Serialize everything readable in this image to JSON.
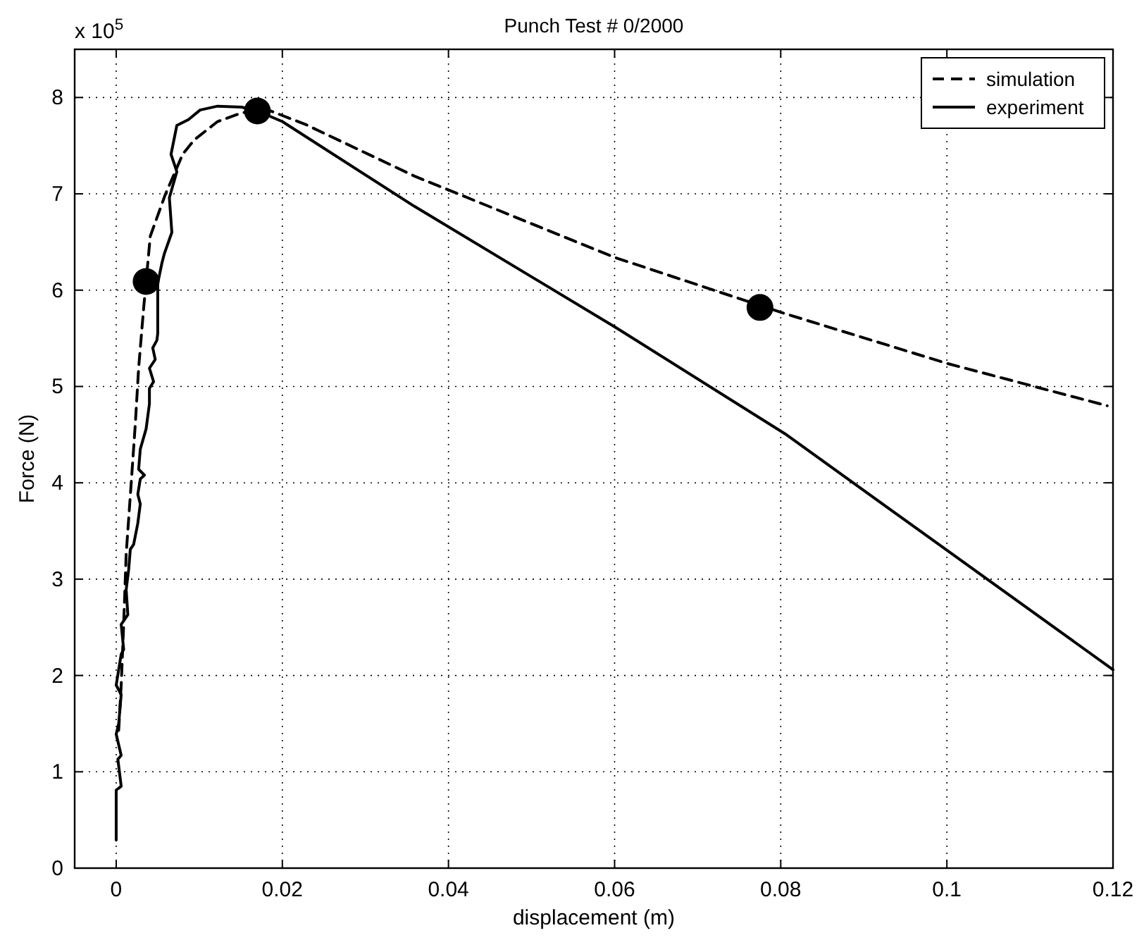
{
  "chart_data": {
    "type": "line",
    "title": "Punch Test # 0/2000",
    "xlabel": "displacement (m)",
    "ylabel": "Force (N)",
    "annotations": [
      "x 10$^{5}$"
    ],
    "xlim": [
      -0.005,
      0.12
    ],
    "xticks": [
      0,
      0.02,
      0.04,
      0.06,
      0.08,
      0.1,
      0.12
    ],
    "ylim": [
      0,
      8.5
    ],
    "yticks": [
      0,
      1,
      2,
      3,
      4,
      5,
      6,
      7,
      8
    ],
    "grid": true,
    "legend": "top right",
    "series": [
      {
        "name": "simulation",
        "color": "#000000",
        "line_style": "dashed",
        "marker": "none",
        "x": [
          0.0003,
          0.0006,
          0.0009,
          0.0012,
          0.0018,
          0.0023,
          0.0027,
          0.0033,
          0.0041,
          0.0059,
          0.008,
          0.0094,
          0.0122,
          0.0151,
          0.018,
          0.0228,
          0.036,
          0.06,
          0.08,
          0.1,
          0.1193
        ],
        "values": [
          1.43,
          1.9,
          2.53,
          3.26,
          3.99,
          4.61,
          5.19,
          5.81,
          6.56,
          6.99,
          7.41,
          7.56,
          7.75,
          7.84,
          7.88,
          7.72,
          7.18,
          6.34,
          5.77,
          5.24,
          4.8
        ]
      },
      {
        "name": "experiment",
        "color": "#000000",
        "line_style": "solid",
        "marker": "none",
        "x": [
          0,
          0,
          0.0006,
          0.0002,
          0.0006,
          0,
          0.0003,
          0.0006,
          0,
          0.0006,
          0.0009,
          0.0006,
          0.0014,
          0.0012,
          0.0015,
          0.0017,
          0.0021,
          0.0026,
          0.0029,
          0.0026,
          0.0029,
          0.0034,
          0.0027,
          0.0029,
          0.0036,
          0.004,
          0.004,
          0.0045,
          0.004,
          0.0047,
          0.0044,
          0.0049,
          0.005,
          0.005,
          0.0055,
          0.0058,
          0.0067,
          0.0064,
          0.0073,
          0.0066,
          0.0073,
          0.0087,
          0.0101,
          0.0122,
          0.0151,
          0.017,
          0.02,
          0.0359,
          0.06,
          0.0805,
          0.12
        ],
        "values": [
          0.29,
          0.81,
          0.85,
          1.13,
          1.17,
          1.39,
          1.5,
          1.8,
          1.9,
          2.22,
          2.27,
          2.53,
          2.63,
          2.89,
          3.1,
          3.31,
          3.36,
          3.58,
          3.78,
          3.88,
          4.04,
          4.08,
          4.14,
          4.35,
          4.56,
          4.82,
          4.98,
          5.05,
          5.19,
          5.28,
          5.4,
          5.48,
          5.55,
          6.07,
          6.28,
          6.38,
          6.6,
          6.96,
          7.23,
          7.41,
          7.71,
          7.77,
          7.87,
          7.91,
          7.9,
          7.86,
          7.75,
          6.87,
          5.62,
          4.51,
          2.06
        ]
      },
      {
        "type": "scatter",
        "color": "#000000",
        "marker": "circle",
        "x": [
          0.0036,
          0.017,
          0.0775
        ],
        "values": [
          6.09,
          7.86,
          5.82
        ]
      }
    ]
  }
}
